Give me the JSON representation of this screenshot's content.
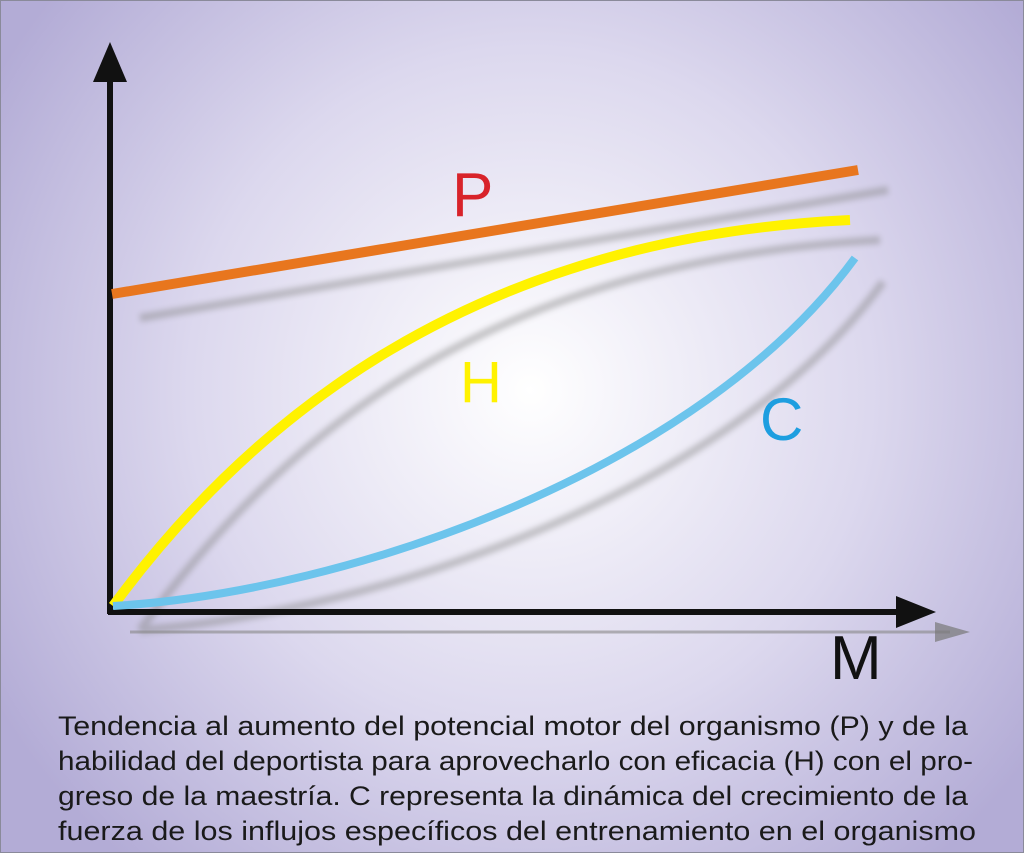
{
  "curves": {
    "P": {
      "label": "P",
      "color": "#e8761e",
      "label_color": "#d8232a"
    },
    "H": {
      "label": "H",
      "color": "#fff200",
      "label_color": "#fff200"
    },
    "C": {
      "label": "C",
      "color": "#6cc4ec",
      "label_color": "#1d9ee0"
    }
  },
  "axes": {
    "x_label": "M"
  },
  "caption": [
    "Tendencia al aumento del potencial motor del organismo (P) y de la",
    "habilidad del deportista para aprovecharlo con eficacia (H) con el pro-",
    "greso de la maestría. C representa la dinámica del crecimiento de la",
    "fuerza de los influjos específicos del entrenamiento en el organismo"
  ]
}
